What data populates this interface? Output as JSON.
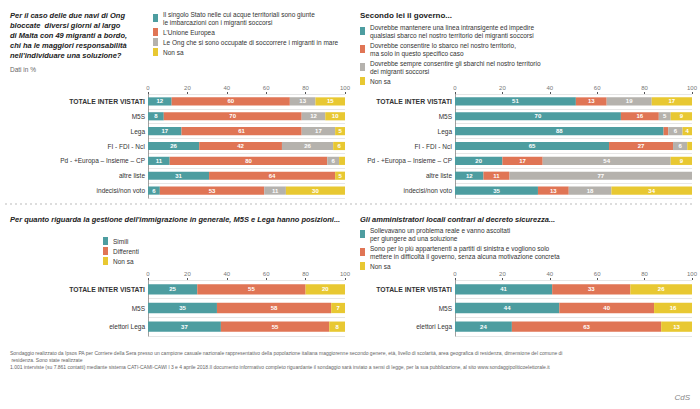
{
  "chart_data": [
    {
      "type": "bar",
      "orientation": "horizontal",
      "stacked": true,
      "data_labels": true,
      "grid": false,
      "legend": "top",
      "title": "Per il caso delle due navi di Ong\nbloccate  diversi giorni al largo\ndi Malta con 49 migranti a bordo,\nchi ha le maggiori responsabilità\nnell'individuare una soluzione?",
      "subtitle": "Dati in %",
      "categories": [
        "TOTALE INTER VISTATI",
        "M5S",
        "Lega",
        "FI - FDI - NcI",
        "Pd - +Europa – Insieme – CP",
        "altre liste",
        "indecisi/non voto"
      ],
      "series": [
        {
          "name": "Il singolo Stato nelle cui acque territoriali sono giunte\nle imbarcazioni con i migranti soccorsi",
          "color": "#4d9da0",
          "values": [
            12,
            8,
            17,
            26,
            11,
            31,
            6
          ],
          "value_labels": [
            "12",
            "8",
            "17",
            "26",
            "11",
            "31",
            "6"
          ]
        },
        {
          "name": "L'Unione Europea",
          "color": "#e07555",
          "values": [
            60,
            70,
            61,
            42,
            80,
            64,
            53
          ],
          "value_labels": [
            "60",
            "70",
            "61",
            "42",
            "80",
            "64",
            "53"
          ]
        },
        {
          "name": "Le Ong che si sono occupate di soccorrere i migranti in mare",
          "color": "#b5b2ad",
          "values": [
            13,
            12,
            17,
            26,
            6,
            0,
            11
          ],
          "value_labels": [
            "13",
            "12",
            "17",
            "26",
            "6",
            null,
            "11"
          ]
        },
        {
          "name": "Non sa",
          "color": "#e8c832",
          "values": [
            15,
            10,
            5,
            6,
            3,
            5,
            30
          ],
          "value_labels": [
            "15",
            "10",
            "5",
            "6",
            null,
            "5",
            "30"
          ]
        }
      ],
      "xlim": [
        0,
        100
      ],
      "xticks": [
        0,
        20,
        40,
        60,
        80,
        100
      ]
    },
    {
      "type": "bar",
      "orientation": "horizontal",
      "stacked": true,
      "data_labels": true,
      "grid": false,
      "legend": "top",
      "title": "Secondo lei il governo...",
      "categories": [
        "TOTALE INTER VISTATI",
        "M5S",
        "Lega",
        "FI - FDI - NcI",
        "Pd - +Europa – Insieme – CP",
        "altre liste",
        "indecisi/non voto"
      ],
      "series": [
        {
          "name": "Dovrebbe mantenere una linea intransigente ed impedire\nqualsiasi sbarco nel nostro territorio dei migranti soccorsi",
          "color": "#4d9da0",
          "values": [
            51,
            70,
            88,
            65,
            20,
            12,
            35
          ],
          "value_labels": [
            "51",
            "70",
            "88",
            "65",
            "20",
            "12",
            "35"
          ]
        },
        {
          "name": "Dovrebbe consentire lo sbarco nel nostro territorio,\nma solo in questo specifico caso",
          "color": "#e07555",
          "values": [
            13,
            16,
            2,
            27,
            17,
            11,
            13
          ],
          "value_labels": [
            "13",
            "16",
            null,
            "27",
            "17",
            "11",
            "13"
          ]
        },
        {
          "name": "Dovrebbe sempre consentire gli sbarchi nel nostro territorio\ndei migranti soccorsi",
          "color": "#b5b2ad",
          "values": [
            19,
            5,
            6,
            6,
            54,
            77,
            18
          ],
          "value_labels": [
            "19",
            "5",
            "6",
            "6",
            "54",
            "77",
            "18"
          ]
        },
        {
          "name": "Non sa",
          "color": "#e8c832",
          "values": [
            17,
            9,
            4,
            2,
            9,
            0,
            34
          ],
          "value_labels": [
            "17",
            "9",
            "4",
            null,
            "9",
            null,
            "34"
          ]
        }
      ],
      "xlim": [
        0,
        100
      ],
      "xticks": [
        0,
        20,
        40,
        60,
        80,
        100
      ]
    },
    {
      "type": "bar",
      "orientation": "horizontal",
      "stacked": true,
      "data_labels": true,
      "grid": false,
      "legend": "top",
      "title": "Per quanto riguarda la gestione dell'immigrazione in generale, M5S e Lega hanno posizioni...",
      "categories": [
        "TOTALE INTER VISTATI",
        "M5S",
        "elettori Lega"
      ],
      "series": [
        {
          "name": "Simili",
          "color": "#4d9da0",
          "values": [
            25,
            35,
            37
          ],
          "value_labels": [
            "25",
            "35",
            "37"
          ]
        },
        {
          "name": "Differenti",
          "color": "#e07555",
          "values": [
            55,
            58,
            55
          ],
          "value_labels": [
            "55",
            "58",
            "55"
          ]
        },
        {
          "name": "Non sa",
          "color": "#e8c832",
          "values": [
            20,
            7,
            8
          ],
          "value_labels": [
            "20",
            "7",
            "8"
          ]
        }
      ],
      "xlim": [
        0,
        100
      ],
      "xticks": [
        0,
        20,
        40,
        60,
        80,
        100
      ]
    },
    {
      "type": "bar",
      "orientation": "horizontal",
      "stacked": true,
      "data_labels": true,
      "grid": false,
      "legend": "top",
      "title": "Gli amministratori locali contrari al decreto sicurezza...",
      "categories": [
        "TOTALE INTER VISTATI",
        "M5S",
        "elettori Lega"
      ],
      "series": [
        {
          "name": "Sollevavano un problema reale e vanno ascoltati\nper giungere ad una soluzione",
          "color": "#4d9da0",
          "values": [
            41,
            44,
            24
          ],
          "value_labels": [
            "41",
            "44",
            "24"
          ]
        },
        {
          "name": "Sono per lo più appartenenti a partiti di sinistra e vogliono solo\nmettere in difficoltà il governo, senza alcuna motivazione concreta",
          "color": "#e07555",
          "values": [
            33,
            40,
            63
          ],
          "value_labels": [
            "33",
            "40",
            "63"
          ]
        },
        {
          "name": "Non sa",
          "color": "#e8c832",
          "values": [
            26,
            16,
            13
          ],
          "value_labels": [
            "26",
            "16",
            "13"
          ]
        }
      ],
      "xlim": [
        0,
        100
      ],
      "xticks": [
        0,
        20,
        40,
        60,
        80,
        100
      ]
    }
  ],
  "annotations": [
    "Sondaggio realizzato da Ipsos PA per Corriere della Sera presso un campione casuale nazionale rappresentativo della popolazione italiana maggiorenne secondo genere, età, livello di scolarità, area geografica di residenza, dimensione del comune di residenza. Sono state realizzate\n1.001 interviste (su 7.861 contatti) mediante sistema CATI-CAMI-CAWI l 3 e 4 aprile 2018.Il documento informativo completo riguardante il sondaggio sarà inviato a sensi di legge, per la sua pubblicazione, al sito www.sondaggipoliticoelettorale.it",
    "CdS"
  ]
}
